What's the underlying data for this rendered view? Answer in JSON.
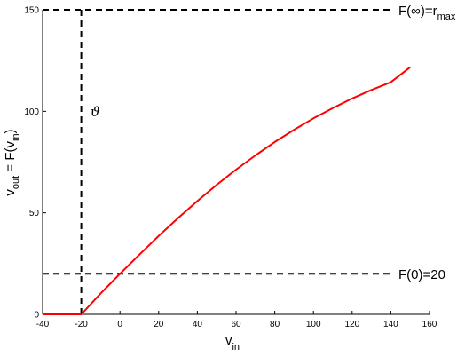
{
  "chart_data": {
    "type": "line",
    "xlabel": "v",
    "xlabel_sub": "in",
    "ylabel_parts": {
      "v": "v",
      "out_sub": "out",
      "eq": " = F(v",
      "in_sub": "in",
      "close": ")"
    },
    "xlim": [
      -40,
      160
    ],
    "ylim": [
      0,
      150
    ],
    "xticks": [
      -40,
      -20,
      0,
      20,
      40,
      60,
      80,
      100,
      120,
      140,
      160
    ],
    "yticks": [
      0,
      50,
      100,
      150
    ],
    "grid": false,
    "series": [
      {
        "color": "#ff0000",
        "x": [
          -40,
          -20,
          -10,
          0,
          10,
          20,
          30,
          40,
          50,
          60,
          70,
          80,
          90,
          100,
          110,
          120,
          130,
          140,
          150
        ],
        "y": [
          0,
          0,
          10.3,
          20.0,
          29.4,
          38.6,
          47.4,
          55.8,
          63.8,
          71.3,
          78.3,
          84.9,
          90.9,
          96.5,
          101.6,
          106.3,
          110.5,
          114.3,
          121.7
        ]
      }
    ],
    "reference_lines": [
      {
        "orientation": "horizontal",
        "y": 150,
        "style": "dashed",
        "label_main": "F(∞)=r",
        "label_sub": "max"
      },
      {
        "orientation": "horizontal",
        "y": 20,
        "style": "dashed",
        "label_main": "F(0)=20",
        "label_sub": ""
      },
      {
        "orientation": "vertical",
        "x": -20,
        "style": "dashed",
        "label": "ϑ",
        "label_y": 100
      }
    ]
  }
}
